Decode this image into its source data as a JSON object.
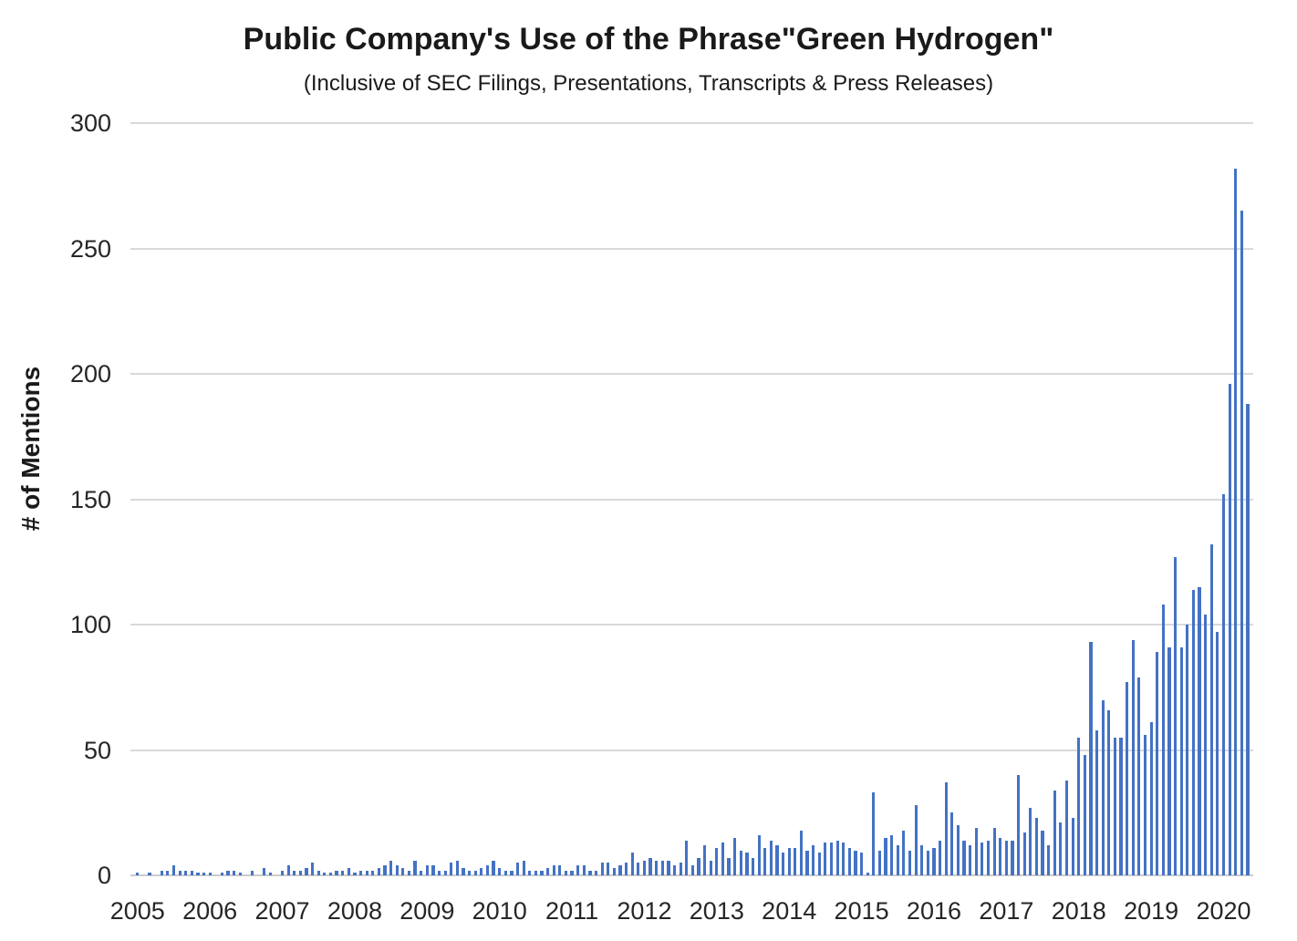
{
  "chart_data": {
    "type": "bar",
    "title": "Public Company's Use of the Phrase\"Green Hydrogen\"",
    "subtitle": "(Inclusive of SEC Filings, Presentations, Transcripts & Press Releases)",
    "ylabel": "# of Mentions",
    "xlabel": "",
    "ylim": [
      0,
      300
    ],
    "yticks": [
      0,
      50,
      100,
      150,
      200,
      250,
      300
    ],
    "grid": "horizontal",
    "legend_position": "none",
    "bar_color": "#4472C4",
    "gridline_color": "#D9D9D9",
    "x_start_month": "2005-01",
    "x_end_month": "2020-05",
    "year_labels": [
      "2005",
      "2006",
      "2007",
      "2008",
      "2009",
      "2010",
      "2011",
      "2012",
      "2013",
      "2014",
      "2015",
      "2016",
      "2017",
      "2018",
      "2019",
      "2020"
    ],
    "series_name": "# of Mentions",
    "monthly_values_by_year": {
      "2005": [
        1,
        0,
        1,
        0,
        2,
        2,
        4,
        2,
        2,
        2,
        1,
        1
      ],
      "2006": [
        1,
        0,
        1,
        2,
        2,
        1,
        0,
        2,
        0,
        3,
        1,
        0
      ],
      "2007": [
        2,
        4,
        2,
        2,
        3,
        5,
        2,
        1,
        1,
        2,
        2,
        3
      ],
      "2008": [
        1,
        2,
        2,
        2,
        3,
        4,
        6,
        4,
        3,
        2,
        6,
        2
      ],
      "2009": [
        4,
        4,
        2,
        2,
        5,
        6,
        3,
        2,
        2,
        3,
        4,
        6
      ],
      "2010": [
        3,
        2,
        2,
        5,
        6,
        2,
        2,
        2,
        3,
        4,
        4,
        2
      ],
      "2011": [
        2,
        4,
        4,
        2,
        2,
        5,
        5,
        3,
        4,
        5,
        9,
        5
      ],
      "2012": [
        6,
        7,
        6,
        6,
        6,
        4,
        5,
        14,
        4,
        7,
        12,
        6
      ],
      "2013": [
        11,
        13,
        7,
        15,
        10,
        9,
        7,
        16,
        11,
        14,
        12,
        9
      ],
      "2014": [
        11,
        11,
        18,
        10,
        12,
        9,
        13,
        13,
        14,
        13,
        11,
        10
      ],
      "2015": [
        9,
        1,
        33,
        10,
        15,
        16,
        12,
        18,
        10,
        28,
        12,
        10
      ],
      "2016": [
        11,
        14,
        37,
        25,
        20,
        14,
        12,
        19,
        13,
        14,
        19,
        15
      ],
      "2017": [
        14,
        14,
        40,
        17,
        27,
        23,
        18,
        12,
        34,
        21,
        38,
        23
      ],
      "2018": [
        55,
        48,
        93,
        58,
        70,
        66,
        55,
        55,
        77,
        94,
        79,
        56
      ],
      "2019": [
        61,
        89,
        108,
        91,
        127,
        91,
        100,
        114,
        115,
        104,
        132,
        97
      ],
      "2020": [
        152,
        196,
        282,
        265,
        188
      ]
    }
  }
}
